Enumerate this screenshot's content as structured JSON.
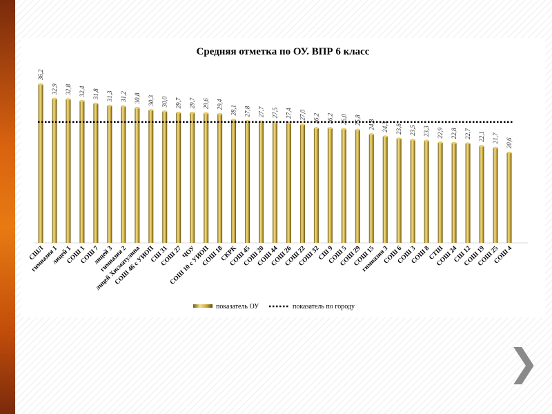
{
  "chart_data": {
    "type": "bar",
    "title": "Средняя отметка по ОУ. ВПР 6 класс",
    "categories": [
      "СШЛ",
      "гимназия 1",
      "лицей 1",
      "СОШ 1",
      "СОШ 7",
      "лицей 3",
      "гимназия 2",
      "лицей Хисматулина",
      "СОШ 46 с УИОП",
      "СШ 31",
      "СОШ 27",
      "ЧОУ",
      "СОШ 10 с УИОП",
      "СОШ 18",
      "СКРК",
      "СОШ 45",
      "СОШ 20",
      "СОШ 44",
      "СОШ 26",
      "СОШ 22",
      "СОШ 32",
      "СШ 9",
      "СОШ 5",
      "СОШ 29",
      "СОШ 15",
      "гимназия 3",
      "СОШ 6",
      "СОШ 3",
      "СОШ 8",
      "СТШ",
      "СОШ 24",
      "СШ 12",
      "СОШ 19",
      "СОШ 25",
      "СОШ 4"
    ],
    "series": [
      {
        "name": "показатель ОУ",
        "type": "bar",
        "color": "#c9a63a",
        "values": [
          36.2,
          32.9,
          32.8,
          32.4,
          31.8,
          31.3,
          31.2,
          30.8,
          30.3,
          30.0,
          29.7,
          29.7,
          29.6,
          29.4,
          28.1,
          27.8,
          27.7,
          27.5,
          27.4,
          27.0,
          26.2,
          26.2,
          26.0,
          25.8,
          24.8,
          24.3,
          23.8,
          23.5,
          23.3,
          22.9,
          22.8,
          22.7,
          22.1,
          21.7,
          20.6
        ]
      },
      {
        "name": "показатель по городу",
        "type": "line",
        "style": "dotted",
        "color": "#000000",
        "value": 27.6
      }
    ],
    "value_labels": [
      "36,2",
      "32,9",
      "32,8",
      "32,4",
      "31,8",
      "31,3",
      "31,2",
      "30,8",
      "30,3",
      "30,0",
      "29,7",
      "29,7",
      "29,6",
      "29,4",
      "28,1",
      "27,8",
      "27,7",
      "27,5",
      "27,4",
      "27,0",
      "26,2",
      "26,2",
      "26,0",
      "25,8",
      "24,8",
      "24,3",
      "23,8",
      "23,5",
      "23,3",
      "22,9",
      "22,8",
      "22,7",
      "22,1",
      "21,7",
      "20,6"
    ],
    "ylim": [
      0,
      36.2
    ],
    "grid": false,
    "legend": "bottom"
  },
  "nav": {
    "next_icon": "chevron-right-icon",
    "next_glyph": "❯"
  }
}
